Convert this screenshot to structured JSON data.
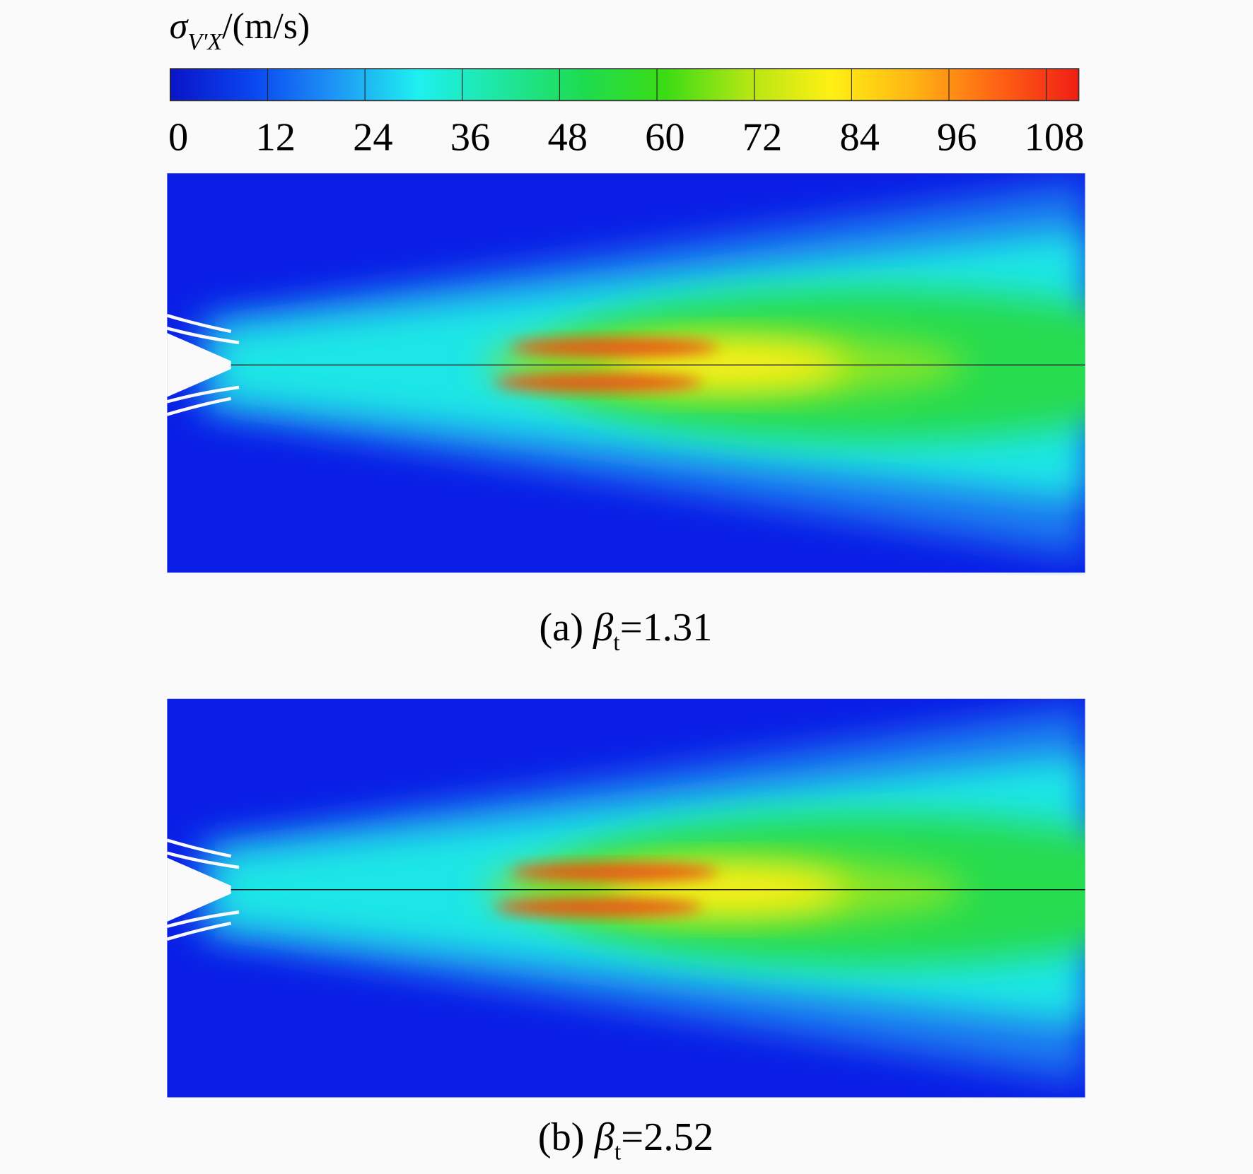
{
  "colorbar": {
    "symbol": "σ",
    "subscript": "V′X",
    "unit": "/(m/s)",
    "lim": [
      0,
      112
    ],
    "ticks": [
      0,
      12,
      24,
      36,
      48,
      60,
      72,
      84,
      96,
      108
    ],
    "colors": [
      "#0a14c8",
      "#0a46f0",
      "#1e96f5",
      "#1ef0f0",
      "#1ee6a0",
      "#1edc50",
      "#3cdc14",
      "#b4e614",
      "#fff014",
      "#ffb414",
      "#ff6414",
      "#f01e14"
    ]
  },
  "panels": [
    {
      "label": "(a)",
      "symbol": "β",
      "subscript": "t",
      "value": "=1.31"
    },
    {
      "label": "(b)",
      "symbol": "β",
      "subscript": "t",
      "value": "=2.52"
    }
  ]
}
